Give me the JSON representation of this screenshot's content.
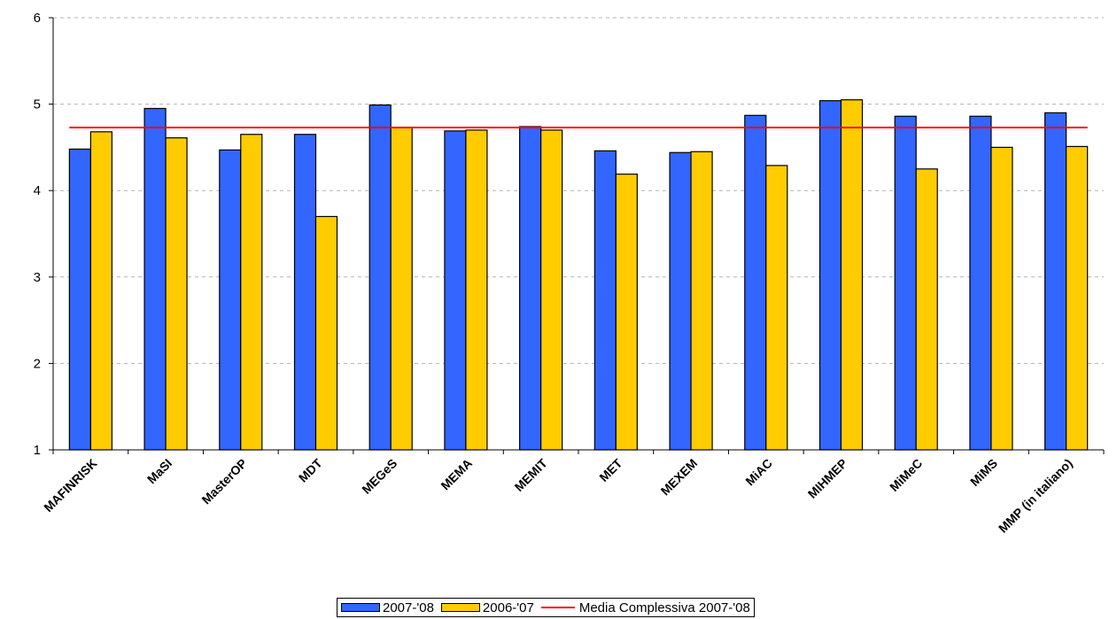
{
  "chart_data": {
    "type": "bar",
    "categories": [
      "MAFINRISK",
      "MaSI",
      "MasterOP",
      "MDT",
      "MEGeS",
      "MEMA",
      "MEMIT",
      "MET",
      "MEXEM",
      "MiAC",
      "MIHMEP",
      "MiMeC",
      "MiMS",
      "MMP (in italiano)"
    ],
    "series": [
      {
        "name": "2007-'08",
        "color": "#3366FF",
        "values": [
          4.48,
          4.95,
          4.47,
          4.65,
          4.99,
          4.69,
          4.74,
          4.46,
          4.44,
          4.87,
          5.04,
          4.86,
          4.86,
          4.9
        ]
      },
      {
        "name": "2006-'07",
        "color": "#FFCC00",
        "values": [
          4.68,
          4.61,
          4.65,
          3.7,
          4.73,
          4.7,
          4.7,
          4.19,
          4.45,
          4.29,
          5.05,
          4.25,
          4.5,
          4.51
        ]
      }
    ],
    "reference_line": {
      "name": "Media Complessiva 2007-'08",
      "value": 4.73,
      "color": "#FF0000"
    },
    "ylim": [
      1,
      6
    ],
    "yticks": [
      1,
      2,
      3,
      4,
      5,
      6
    ],
    "grid": true,
    "legend_position": "bottom",
    "title": "",
    "xlabel": "",
    "ylabel": ""
  }
}
